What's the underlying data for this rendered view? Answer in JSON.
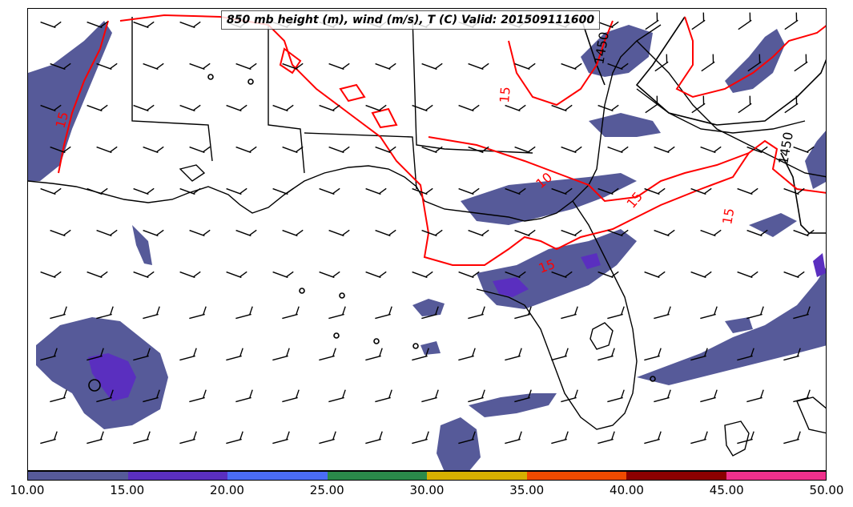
{
  "title": "850 mb height (m), wind (m/s), T (C) Valid: 201509111600",
  "colorbar": {
    "ticks": [
      "10.00",
      "15.00",
      "20.00",
      "25.00",
      "30.00",
      "35.00",
      "40.00",
      "45.00",
      "50.00"
    ],
    "colors": [
      "#565a99",
      "#5a2fbf",
      "#4a6cf5",
      "#2a8a4a",
      "#d6b000",
      "#f04a00",
      "#8c0000",
      "#f0308c"
    ]
  },
  "contour_labels": {
    "height_1": "1450",
    "height_2": "1450",
    "temp_1": "15",
    "temp_2": "10",
    "temp_3": "15",
    "temp_4": "15",
    "temp_5": "15",
    "temp_6": "15"
  },
  "colors": {
    "height_contour": "#000000",
    "temperature_contour": "#ff0000",
    "coastline": "#000000"
  }
}
